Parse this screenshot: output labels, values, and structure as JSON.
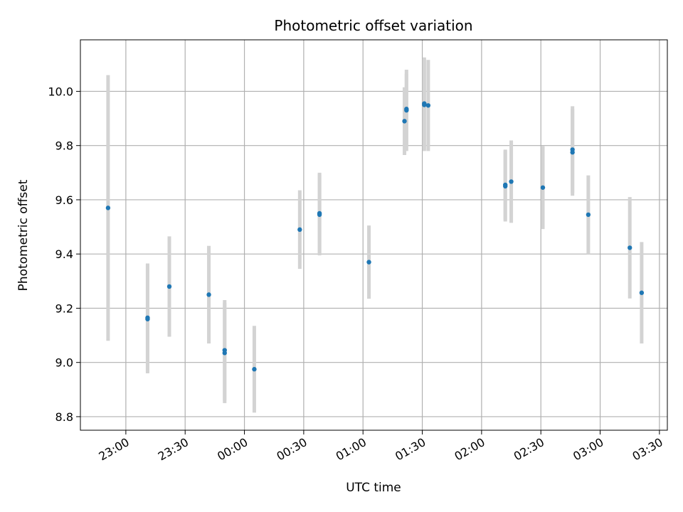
{
  "chart_data": {
    "type": "scatter",
    "title": "Photometric offset variation",
    "xlabel": "UTC time",
    "ylabel": "Photometric offset",
    "x_ticks": [
      "23:00",
      "23:30",
      "00:00",
      "00:30",
      "01:00",
      "01:30",
      "02:00",
      "02:30",
      "03:00",
      "03:30"
    ],
    "y_ticks": [
      8.8,
      9.0,
      9.2,
      9.4,
      9.6,
      9.8,
      10.0
    ],
    "xlim": [
      "22:37",
      "03:34"
    ],
    "ylim": [
      8.75,
      10.19
    ],
    "grid": true,
    "colors": {
      "point": "#1f77b4",
      "errorbar": "#d3d3d3",
      "grid": "#b0b0b0"
    },
    "points": [
      {
        "time": "22:51",
        "y": 9.57,
        "yerr": 0.49
      },
      {
        "time": "23:11",
        "y": 9.165,
        "yerr": 0.2
      },
      {
        "time": "23:11",
        "y": 9.16,
        "yerr": 0.2
      },
      {
        "time": "23:22",
        "y": 9.28,
        "yerr": 0.185
      },
      {
        "time": "23:42",
        "y": 9.25,
        "yerr": 0.18
      },
      {
        "time": "23:50",
        "y": 9.045,
        "yerr": 0.185
      },
      {
        "time": "23:50",
        "y": 9.035,
        "yerr": 0.185
      },
      {
        "time": "00:05",
        "y": 8.975,
        "yerr": 0.16
      },
      {
        "time": "00:28",
        "y": 9.49,
        "yerr": 0.145
      },
      {
        "time": "00:38",
        "y": 9.55,
        "yerr": 0.15
      },
      {
        "time": "00:38",
        "y": 9.545,
        "yerr": 0.15
      },
      {
        "time": "01:03",
        "y": 9.37,
        "yerr": 0.135
      },
      {
        "time": "01:21",
        "y": 9.89,
        "yerr": 0.125
      },
      {
        "time": "01:22",
        "y": 9.93,
        "yerr": 0.15
      },
      {
        "time": "01:22",
        "y": 9.935,
        "yerr": 0.13
      },
      {
        "time": "01:31",
        "y": 9.955,
        "yerr": 0.17
      },
      {
        "time": "01:31",
        "y": 9.95,
        "yerr": 0.17
      },
      {
        "time": "01:33",
        "y": 9.948,
        "yerr": 0.168
      },
      {
        "time": "02:12",
        "y": 9.655,
        "yerr": 0.13
      },
      {
        "time": "02:12",
        "y": 9.65,
        "yerr": 0.13
      },
      {
        "time": "02:15",
        "y": 9.667,
        "yerr": 0.152
      },
      {
        "time": "02:31",
        "y": 9.645,
        "yerr": 0.153
      },
      {
        "time": "02:46",
        "y": 9.785,
        "yerr": 0.16
      },
      {
        "time": "02:46",
        "y": 9.775,
        "yerr": 0.16
      },
      {
        "time": "02:54",
        "y": 9.545,
        "yerr": 0.145
      },
      {
        "time": "03:15",
        "y": 9.423,
        "yerr": 0.187
      },
      {
        "time": "03:21",
        "y": 9.257,
        "yerr": 0.187
      }
    ]
  }
}
